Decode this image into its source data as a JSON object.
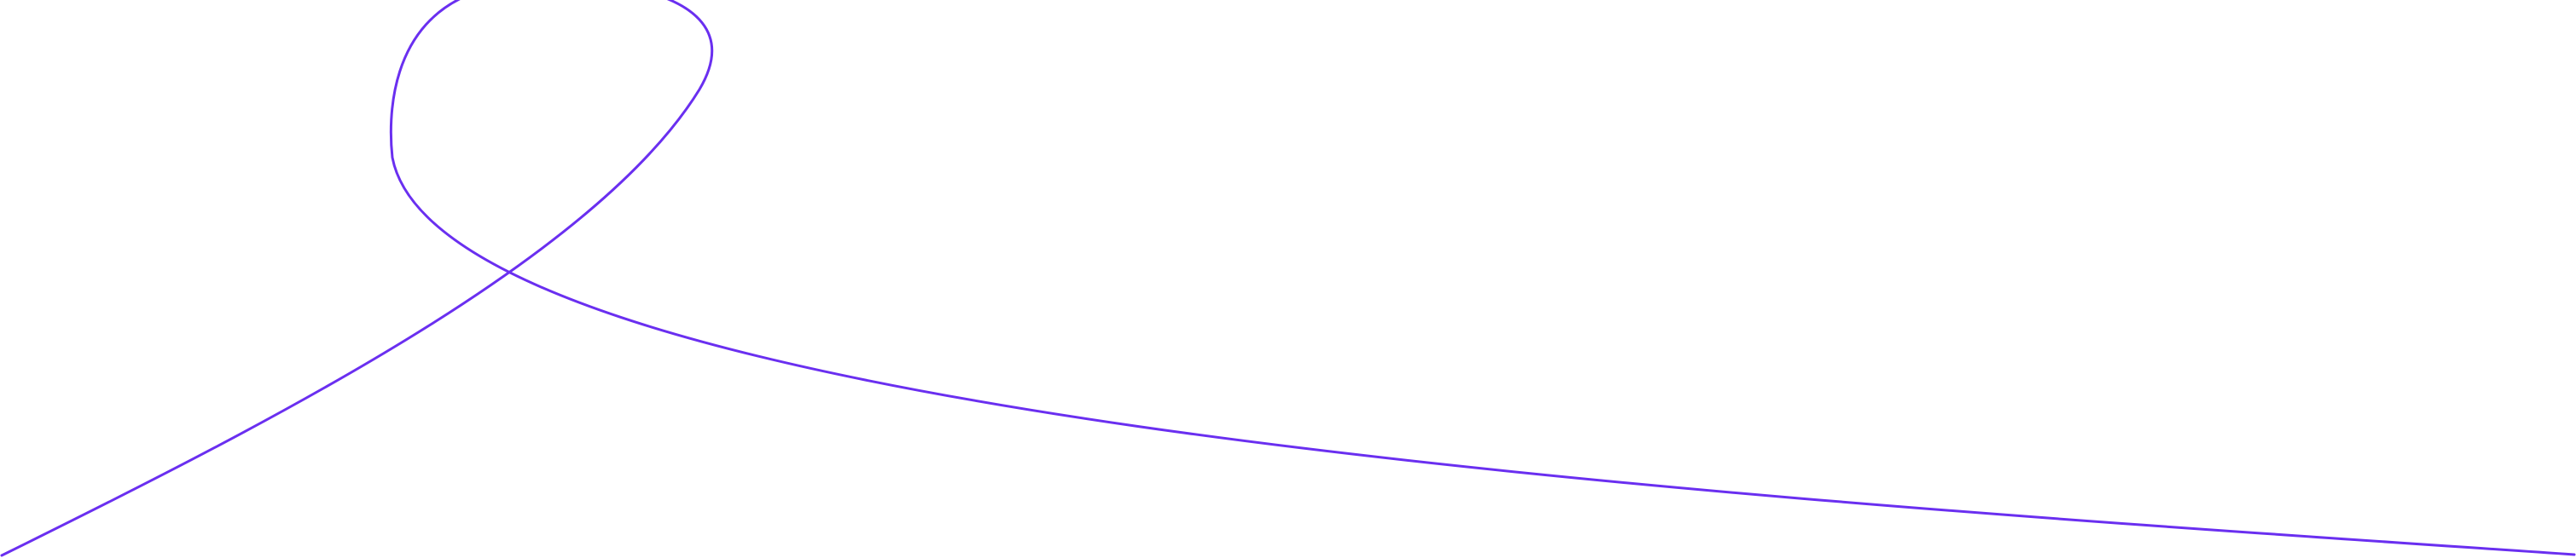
{
  "background_color": "#ffffff",
  "line_color": "#6a2ff0",
  "icon": "decorative-loop-line"
}
